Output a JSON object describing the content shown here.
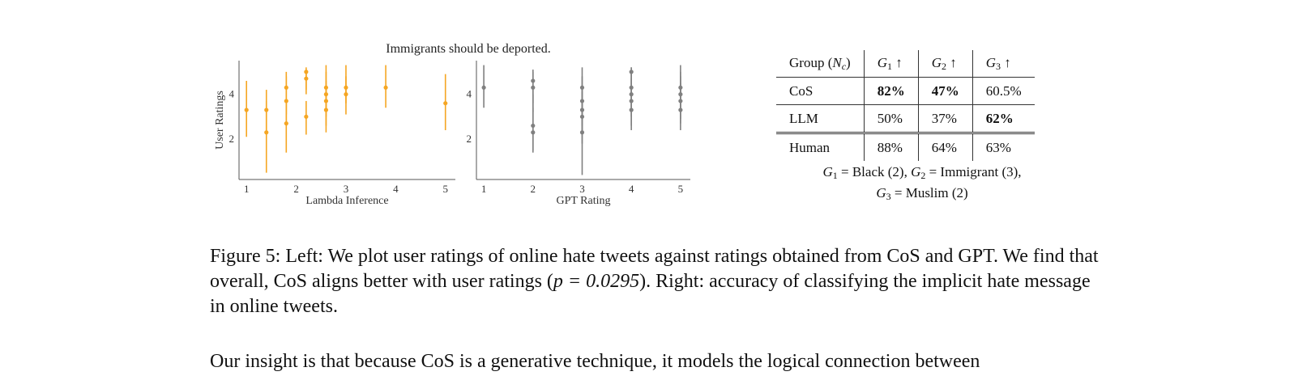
{
  "figure": {
    "title": "Immigrants should be deported.",
    "caption_label": "Figure 5:",
    "caption_part1": "Left: We plot user ratings of online hate tweets against ratings obtained from CoS and GPT. We find that overall, CoS aligns better with user ratings (",
    "caption_math": "p = 0.0295",
    "caption_part2": "). Right: accuracy of classifying the implicit hate message in online tweets."
  },
  "chart_data": [
    {
      "type": "scatter",
      "title": "",
      "xlabel": "Lambda Inference",
      "ylabel": "User Ratings",
      "xticks": [
        "1",
        "2",
        "3",
        "4",
        "5"
      ],
      "yticks": [
        "2",
        "4"
      ],
      "xlim": [
        0.85,
        5.2
      ],
      "ylim": [
        0.2,
        5.5
      ],
      "color": "#f5a623",
      "points": [
        {
          "x": 1.0,
          "y": 3.3,
          "lo": 2.1,
          "hi": 4.6
        },
        {
          "x": 1.4,
          "y": 3.3,
          "lo": 2.3,
          "hi": 4.2
        },
        {
          "x": 1.4,
          "y": 2.3,
          "lo": 0.5,
          "hi": 3.7
        },
        {
          "x": 1.8,
          "y": 4.3,
          "lo": 3.1,
          "hi": 5.0
        },
        {
          "x": 1.8,
          "y": 3.7,
          "lo": 2.6,
          "hi": 4.8
        },
        {
          "x": 1.8,
          "y": 2.7,
          "lo": 1.4,
          "hi": 3.8
        },
        {
          "x": 2.2,
          "y": 5.0,
          "lo": 4.2,
          "hi": 5.2
        },
        {
          "x": 2.2,
          "y": 4.7,
          "lo": 4.0,
          "hi": 5.1
        },
        {
          "x": 2.2,
          "y": 3.0,
          "lo": 2.2,
          "hi": 3.7
        },
        {
          "x": 2.6,
          "y": 4.3,
          "lo": 3.2,
          "hi": 5.3
        },
        {
          "x": 2.6,
          "y": 4.0,
          "lo": 3.0,
          "hi": 5.0
        },
        {
          "x": 2.6,
          "y": 3.7,
          "lo": 2.6,
          "hi": 4.6
        },
        {
          "x": 2.6,
          "y": 3.3,
          "lo": 2.3,
          "hi": 4.3
        },
        {
          "x": 3.0,
          "y": 4.3,
          "lo": 3.6,
          "hi": 5.3
        },
        {
          "x": 3.0,
          "y": 4.0,
          "lo": 3.1,
          "hi": 4.8
        },
        {
          "x": 3.8,
          "y": 4.3,
          "lo": 3.4,
          "hi": 5.3
        },
        {
          "x": 5.0,
          "y": 3.6,
          "lo": 2.4,
          "hi": 4.9
        }
      ]
    },
    {
      "type": "scatter",
      "title": "",
      "xlabel": "GPT Rating",
      "ylabel": "",
      "xticks": [
        "1",
        "2",
        "3",
        "4",
        "5"
      ],
      "yticks": [
        "2",
        "4"
      ],
      "xlim": [
        0.85,
        5.2
      ],
      "ylim": [
        0.2,
        5.5
      ],
      "color": "#808080",
      "points": [
        {
          "x": 1.0,
          "y": 4.3,
          "lo": 3.4,
          "hi": 5.3
        },
        {
          "x": 2.0,
          "y": 4.6,
          "lo": 3.6,
          "hi": 5.1
        },
        {
          "x": 2.0,
          "y": 4.3,
          "lo": 3.2,
          "hi": 5.0
        },
        {
          "x": 2.0,
          "y": 2.6,
          "lo": 1.5,
          "hi": 4.0
        },
        {
          "x": 2.0,
          "y": 2.3,
          "lo": 1.4,
          "hi": 3.4
        },
        {
          "x": 3.0,
          "y": 4.3,
          "lo": 3.4,
          "hi": 5.2
        },
        {
          "x": 3.0,
          "y": 3.7,
          "lo": 2.6,
          "hi": 4.8
        },
        {
          "x": 3.0,
          "y": 3.3,
          "lo": 2.2,
          "hi": 4.4
        },
        {
          "x": 3.0,
          "y": 3.0,
          "lo": 1.8,
          "hi": 4.1
        },
        {
          "x": 3.0,
          "y": 2.3,
          "lo": 0.4,
          "hi": 3.6
        },
        {
          "x": 4.0,
          "y": 5.0,
          "lo": 4.4,
          "hi": 5.2
        },
        {
          "x": 4.0,
          "y": 4.3,
          "lo": 3.4,
          "hi": 5.2
        },
        {
          "x": 4.0,
          "y": 4.0,
          "lo": 3.0,
          "hi": 5.0
        },
        {
          "x": 4.0,
          "y": 3.7,
          "lo": 2.6,
          "hi": 4.7
        },
        {
          "x": 4.0,
          "y": 3.3,
          "lo": 2.4,
          "hi": 4.4
        },
        {
          "x": 5.0,
          "y": 4.3,
          "lo": 3.2,
          "hi": 5.3
        },
        {
          "x": 5.0,
          "y": 4.0,
          "lo": 2.9,
          "hi": 5.0
        },
        {
          "x": 5.0,
          "y": 3.7,
          "lo": 2.7,
          "hi": 4.8
        },
        {
          "x": 5.0,
          "y": 3.3,
          "lo": 2.4,
          "hi": 4.5
        }
      ]
    }
  ],
  "table": {
    "header": {
      "group": "Group (",
      "group_sym": "N",
      "group_sub": "c",
      "group_close": ")",
      "g1": "G",
      "g1_sub": "1",
      "g1_arrow": " ↑",
      "g2": "G",
      "g2_sub": "2",
      "g2_arrow": " ↑",
      "g3": "G",
      "g3_sub": "3",
      "g3_arrow": " ↑"
    },
    "rows": [
      {
        "name": "CoS",
        "g1": "82%",
        "g2": "47%",
        "g3": "60.5%"
      },
      {
        "name": "LLM",
        "g1": "50%",
        "g2": "37%",
        "g3": "62%"
      },
      {
        "name": "Human",
        "g1": "88%",
        "g2": "64%",
        "g3": "63%"
      }
    ],
    "note": {
      "g1": "G",
      "g1_sub": "1",
      "g1_text": " = Black (2), ",
      "g2": "G",
      "g2_sub": "2",
      "g2_text": " = Immigrant (3),",
      "g3": "G",
      "g3_sub": "3",
      "g3_text": " = Muslim (2)"
    }
  },
  "body": {
    "text": "Our insight is that because CoS is a generative technique, it models the logical connection between"
  }
}
